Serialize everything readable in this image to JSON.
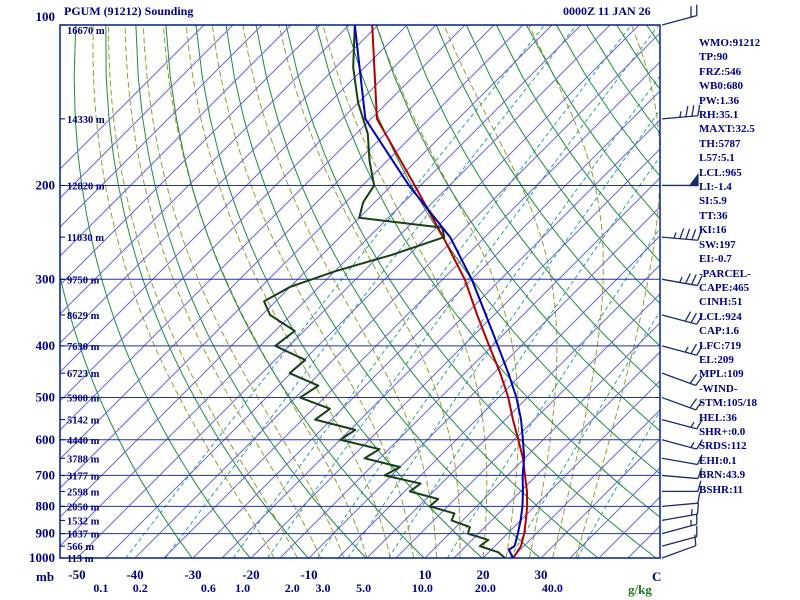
{
  "header": {
    "title": "PGUM (91212) Sounding",
    "datetime": "0000Z 11 JAN 26"
  },
  "panel": {
    "items": [
      "WMO:91212",
      "TP:90",
      "FRZ:546",
      "WB0:680",
      "PW:1.36",
      "RH:35.1",
      "MAXT:32.5",
      "TH:5787",
      "L57:5.1",
      "LCL:965",
      "LI:-1.4",
      "SI:5.9",
      "TT:36",
      "KI:16",
      "SW:197",
      "EI:-0.7",
      "-PARCEL-",
      "CAPE:465",
      "CINH:51",
      "LCL:924",
      "CAP:1.6",
      "LFC:719",
      "EL:209",
      "MPL:109",
      "-WIND-",
      "STM:105/18",
      "HEL:36",
      "SHR+:0.0",
      "SRDS:112",
      "EHI:0.1",
      "BRN:43.9",
      "BSHR:11"
    ]
  },
  "chart_data": {
    "type": "line",
    "subtype": "skew-t log-p sounding",
    "station": "PGUM (91212)",
    "valid": "0000Z 11 JAN 26",
    "units": {
      "pressure": "mb",
      "temp": "C",
      "mixing": "g/kg"
    },
    "pressure_ticks": [
      100,
      200,
      300,
      400,
      500,
      600,
      700,
      800,
      900,
      1000
    ],
    "temp_ticks": [
      -50,
      -40,
      -30,
      -20,
      -10,
      10,
      20,
      30
    ],
    "mixing_ticks": [
      0.1,
      0.2,
      0.6,
      1.0,
      2.0,
      3.0,
      5.0,
      10.0,
      20.0,
      40.0
    ],
    "height_levels": [
      [
        100,
        16670
      ],
      [
        150,
        14330
      ],
      [
        200,
        12820
      ],
      [
        250,
        11030
      ],
      [
        300,
        9750
      ],
      [
        350,
        8629
      ],
      [
        400,
        7630
      ],
      [
        450,
        6723
      ],
      [
        500,
        5900
      ],
      [
        550,
        5142
      ],
      [
        600,
        4440
      ],
      [
        650,
        3788
      ],
      [
        700,
        3177
      ],
      [
        750,
        2598
      ],
      [
        800,
        2050
      ],
      [
        850,
        1532
      ],
      [
        900,
        1037
      ],
      [
        950,
        566
      ],
      [
        1000,
        113
      ]
    ],
    "colors": {
      "temperature": "#b40000",
      "dewpoint": "#173f17",
      "parcel": "#0000b4",
      "isotherm": "#6a6ace",
      "isobar": "#2233aa",
      "dry_adiabat": "#1c8c3c",
      "mixing_line": "#2e9e9e",
      "moist_adiabat": "#9a9a30",
      "axis_text": "#000080",
      "mixing_text": "#1c7a1c",
      "wind_barb": "#1a2a6a"
    },
    "series": [
      {
        "name": "temperature",
        "points": [
          [
            1000,
            25.2
          ],
          [
            950,
            24.5
          ],
          [
            900,
            22.9
          ],
          [
            850,
            20.9
          ],
          [
            800,
            18.7
          ],
          [
            750,
            16.1
          ],
          [
            700,
            13.0
          ],
          [
            650,
            9.7
          ],
          [
            600,
            5.7
          ],
          [
            550,
            1.3
          ],
          [
            500,
            -3.3
          ],
          [
            450,
            -8.9
          ],
          [
            400,
            -15.5
          ],
          [
            350,
            -22.9
          ],
          [
            300,
            -31.2
          ],
          [
            250,
            -42.2
          ],
          [
            200,
            -56
          ],
          [
            150,
            -74
          ],
          [
            100,
            -91
          ]
        ]
      },
      {
        "name": "dewpoint",
        "points": [
          [
            1000,
            23.8
          ],
          [
            975,
            21.6
          ],
          [
            950,
            17.4
          ],
          [
            925,
            17.8
          ],
          [
            900,
            13.2
          ],
          [
            875,
            12.4
          ],
          [
            850,
            8.1
          ],
          [
            825,
            7.4
          ],
          [
            800,
            1.9
          ],
          [
            775,
            2.1
          ],
          [
            750,
            -4.1
          ],
          [
            725,
            -3.6
          ],
          [
            700,
            -11.2
          ],
          [
            675,
            -10.0
          ],
          [
            650,
            -17.6
          ],
          [
            625,
            -16.6
          ],
          [
            600,
            -25.0
          ],
          [
            575,
            -24.1
          ],
          [
            550,
            -32.8
          ],
          [
            525,
            -32.1
          ],
          [
            500,
            -39.2
          ],
          [
            475,
            -38.1
          ],
          [
            450,
            -45.2
          ],
          [
            425,
            -44.8
          ],
          [
            400,
            -52.4
          ],
          [
            375,
            -51.6
          ],
          [
            350,
            -58.6
          ],
          [
            330,
            -62.0
          ],
          [
            310,
            -60.0
          ],
          [
            290,
            -55.0
          ],
          [
            270,
            -48.0
          ],
          [
            250,
            -42.0
          ],
          [
            240,
            -44.0
          ],
          [
            230,
            -60.0
          ],
          [
            215,
            -62.0
          ],
          [
            200,
            -63.0
          ],
          [
            180,
            -68.0
          ],
          [
            160,
            -73.0
          ],
          [
            140,
            -80.0
          ],
          [
            120,
            -87.0
          ],
          [
            100,
            -94.0
          ]
        ]
      },
      {
        "name": "parcel",
        "points": [
          [
            1000,
            25.2
          ],
          [
            965,
            23.0
          ],
          [
            950,
            23.4
          ],
          [
            900,
            21.8
          ],
          [
            850,
            20.0
          ],
          [
            800,
            17.9
          ],
          [
            750,
            15.4
          ],
          [
            700,
            12.6
          ],
          [
            650,
            9.9
          ],
          [
            600,
            6.5
          ],
          [
            550,
            2.7
          ],
          [
            500,
            -1.9
          ],
          [
            450,
            -7.5
          ],
          [
            400,
            -14.0
          ],
          [
            350,
            -21.4
          ],
          [
            300,
            -30.0
          ],
          [
            250,
            -41.0
          ],
          [
            200,
            -57
          ],
          [
            150,
            -76
          ],
          [
            100,
            -94
          ]
        ]
      }
    ],
    "winds": [
      {
        "p": 1000,
        "dir": 70,
        "spd": 10
      },
      {
        "p": 950,
        "dir": 75,
        "spd": 12
      },
      {
        "p": 900,
        "dir": 75,
        "spd": 15
      },
      {
        "p": 850,
        "dir": 80,
        "spd": 15
      },
      {
        "p": 800,
        "dir": 85,
        "spd": 12
      },
      {
        "p": 750,
        "dir": 90,
        "spd": 10
      },
      {
        "p": 700,
        "dir": 95,
        "spd": 10
      },
      {
        "p": 650,
        "dir": 100,
        "spd": 12
      },
      {
        "p": 600,
        "dir": 105,
        "spd": 15
      },
      {
        "p": 550,
        "dir": 105,
        "spd": 15
      },
      {
        "p": 500,
        "dir": 110,
        "spd": 18
      },
      {
        "p": 450,
        "dir": 110,
        "spd": 20
      },
      {
        "p": 400,
        "dir": 105,
        "spd": 25
      },
      {
        "p": 350,
        "dir": 105,
        "spd": 30
      },
      {
        "p": 300,
        "dir": 100,
        "spd": 35
      },
      {
        "p": 250,
        "dir": 95,
        "spd": 45
      },
      {
        "p": 200,
        "dir": 90,
        "spd": 50
      },
      {
        "p": 150,
        "dir": 85,
        "spd": 35
      },
      {
        "p": 100,
        "dir": 75,
        "spd": 20
      }
    ]
  }
}
